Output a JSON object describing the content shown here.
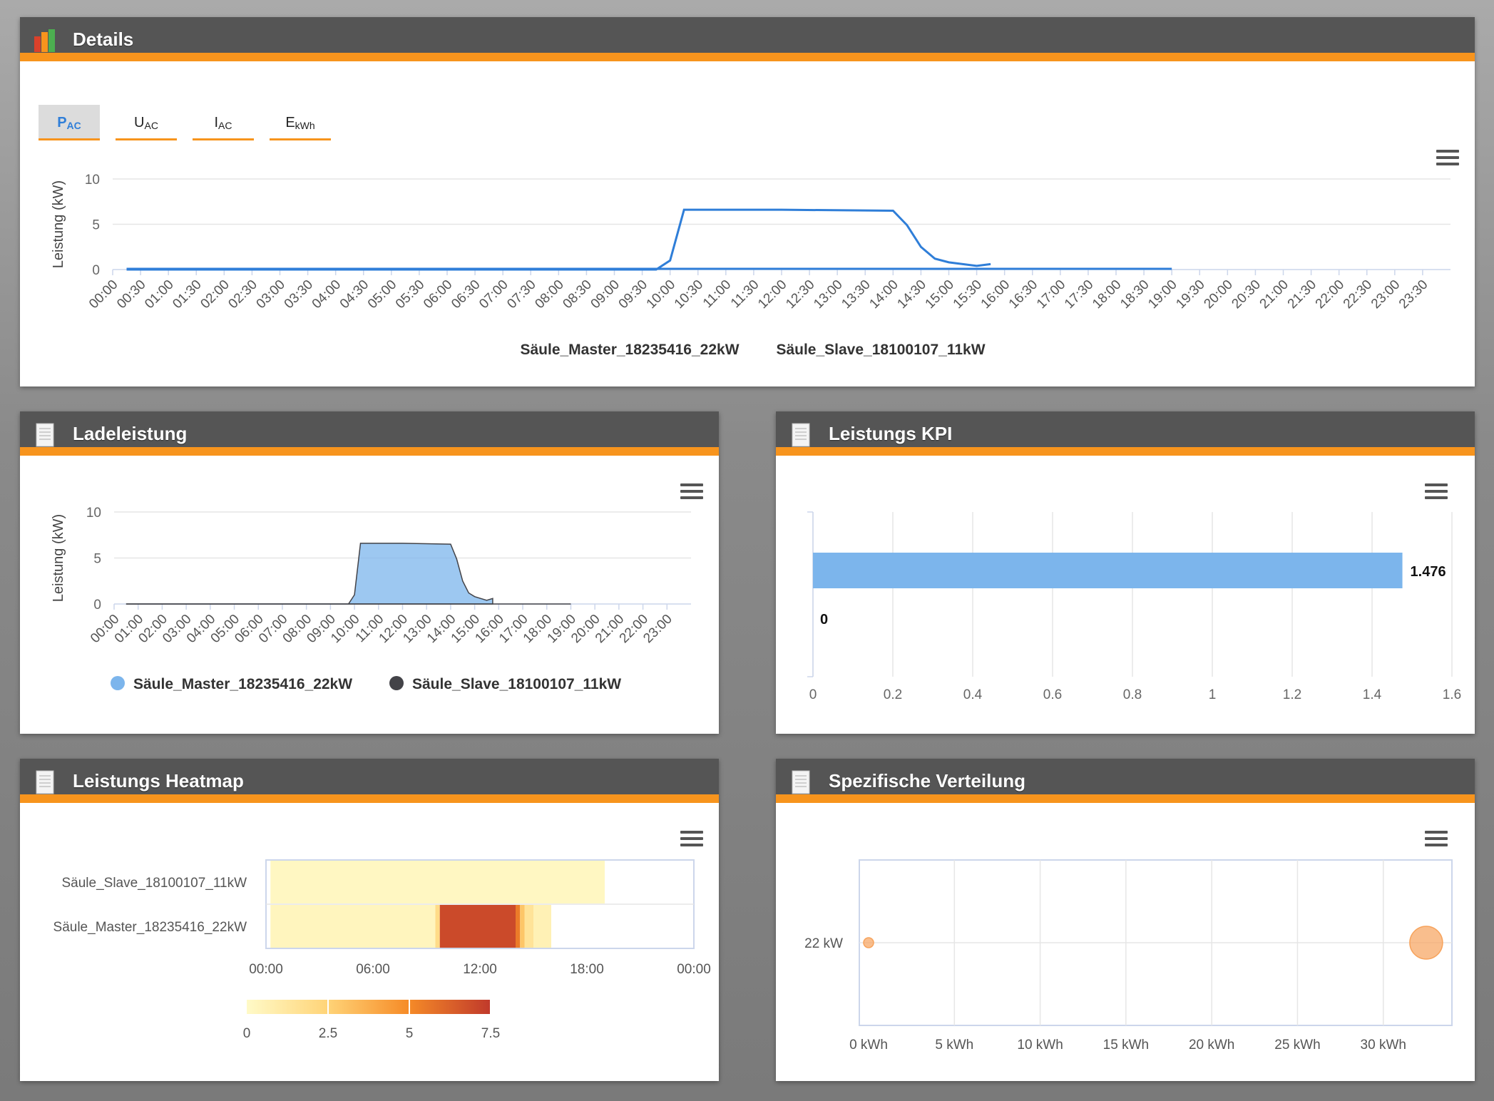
{
  "panels": {
    "details": {
      "title": "Details"
    },
    "ladeleistung": {
      "title": "Ladeleistung"
    },
    "kpi": {
      "title": "Leistungs KPI"
    },
    "heatmap": {
      "title": "Leistungs Heatmap"
    },
    "verteilung": {
      "title": "Spezifische Verteilung"
    }
  },
  "tabs": [
    {
      "main": "P",
      "sub": "AC",
      "active": true
    },
    {
      "main": "U",
      "sub": "AC",
      "active": false
    },
    {
      "main": "I",
      "sub": "AC",
      "active": false
    },
    {
      "main": "E",
      "sub": "kWh",
      "active": false
    }
  ],
  "colors": {
    "accent": "#f7941d",
    "header": "#555555",
    "line": "#2f7ed8",
    "area": "#7cb5ec",
    "slave": "#434348"
  },
  "chart_data": [
    {
      "id": "details",
      "type": "line",
      "ylabel": "Leistung (kW)",
      "ylim": [
        0,
        10
      ],
      "yticks": [
        0,
        5,
        10
      ],
      "xticks": [
        "00:00",
        "00:30",
        "01:00",
        "01:30",
        "02:00",
        "02:30",
        "03:00",
        "03:30",
        "04:00",
        "04:30",
        "05:00",
        "05:30",
        "06:00",
        "06:30",
        "07:00",
        "07:30",
        "08:00",
        "08:30",
        "09:00",
        "09:30",
        "10:00",
        "10:30",
        "11:00",
        "11:30",
        "12:00",
        "12:30",
        "13:00",
        "13:30",
        "14:00",
        "14:30",
        "15:00",
        "15:30",
        "16:00",
        "16:30",
        "17:00",
        "17:30",
        "18:00",
        "18:30",
        "19:00",
        "19:30",
        "20:00",
        "20:30",
        "21:00",
        "21:30",
        "22:00",
        "22:30",
        "23:00",
        "23:30"
      ],
      "legend": [
        "Säule_Master_18235416_22kW",
        "Säule_Slave_18100107_11kW"
      ],
      "series": [
        {
          "name": "Säule_Master_18235416_22kW",
          "points": [
            [
              0.25,
              0
            ],
            [
              9.75,
              0
            ],
            [
              10.0,
              1.0
            ],
            [
              10.25,
              6.6
            ],
            [
              12.0,
              6.6
            ],
            [
              14.0,
              6.5
            ],
            [
              14.25,
              4.9
            ],
            [
              14.5,
              2.5
            ],
            [
              14.75,
              1.2
            ],
            [
              15.0,
              0.8
            ],
            [
              15.5,
              0.4
            ],
            [
              15.75,
              0.6
            ]
          ],
          "zero_until": 19.0
        }
      ]
    },
    {
      "id": "ladeleistung",
      "type": "area",
      "ylabel": "Leistung (kW)",
      "ylim": [
        0,
        10
      ],
      "yticks": [
        0,
        5,
        10
      ],
      "xticks": [
        "00:00",
        "01:00",
        "02:00",
        "03:00",
        "04:00",
        "05:00",
        "06:00",
        "07:00",
        "08:00",
        "09:00",
        "10:00",
        "11:00",
        "12:00",
        "13:00",
        "14:00",
        "15:00",
        "16:00",
        "17:00",
        "18:00",
        "19:00",
        "20:00",
        "21:00",
        "22:00",
        "23:00"
      ],
      "legend": [
        "Säule_Master_18235416_22kW",
        "Säule_Slave_18100107_11kW"
      ],
      "series": [
        {
          "name": "Säule_Master_18235416_22kW",
          "points": [
            [
              0.5,
              0
            ],
            [
              9.75,
              0
            ],
            [
              10.0,
              1.0
            ],
            [
              10.25,
              6.6
            ],
            [
              12.0,
              6.6
            ],
            [
              14.0,
              6.5
            ],
            [
              14.25,
              4.9
            ],
            [
              14.5,
              2.5
            ],
            [
              14.75,
              1.2
            ],
            [
              15.0,
              0.8
            ],
            [
              15.5,
              0.4
            ],
            [
              15.75,
              0.6
            ]
          ],
          "zero_until": 19.0
        }
      ]
    },
    {
      "id": "kpi",
      "type": "bar",
      "values": [
        1.476,
        0
      ],
      "labels": [
        "1.476",
        "0"
      ],
      "xlim": [
        0,
        1.6
      ],
      "xticks": [
        "0",
        "0.2",
        "0.4",
        "0.6",
        "0.8",
        "1",
        "1.2",
        "1.4",
        "1.6"
      ]
    },
    {
      "id": "heatmap",
      "type": "heatmap",
      "categories": [
        "Säule_Slave_18100107_11kW",
        "Säule_Master_18235416_22kW"
      ],
      "xticks": [
        "00:00",
        "06:00",
        "12:00",
        "18:00",
        "00:00"
      ],
      "colorbar_ticks": [
        "0",
        "2.5",
        "5",
        "7.5"
      ],
      "rows": [
        {
          "name": "Säule_Slave_18100107_11kW",
          "cells": [
            [
              0.25,
              19.0,
              0.2
            ]
          ]
        },
        {
          "name": "Säule_Master_18235416_22kW",
          "cells": [
            [
              0.25,
              9.5,
              0.3
            ],
            [
              9.5,
              9.75,
              2.0
            ],
            [
              9.75,
              14.0,
              7.0
            ],
            [
              14.0,
              14.25,
              5.5
            ],
            [
              14.25,
              14.5,
              3.0
            ],
            [
              14.5,
              15.0,
              1.5
            ],
            [
              15.0,
              16.0,
              0.6
            ]
          ]
        }
      ]
    },
    {
      "id": "verteilung",
      "type": "scatter",
      "ytick": "22 kW",
      "xticks": [
        "0 kWh",
        "5 kWh",
        "10 kWh",
        "15 kWh",
        "20 kWh",
        "25 kWh",
        "30 kWh"
      ],
      "xlim": [
        0,
        34
      ],
      "points": [
        {
          "x": 0,
          "y": 22,
          "size": "small"
        },
        {
          "x": 32.5,
          "y": 22,
          "size": "large"
        }
      ]
    }
  ]
}
